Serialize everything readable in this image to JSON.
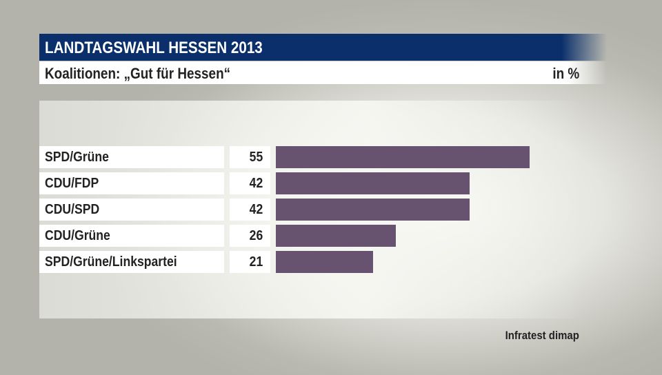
{
  "chart_data": {
    "type": "bar",
    "orientation": "horizontal",
    "title": "LANDTAGSWAHL HESSEN 2013",
    "subtitle": "Koalitionen: „Gut für Hessen“",
    "unit": "in %",
    "categories": [
      "SPD/Grüne",
      "CDU/FDP",
      "CDU/SPD",
      "CDU/Grüne",
      "SPD/Grüne/Linkspartei"
    ],
    "values": [
      55,
      42,
      42,
      26,
      21
    ],
    "value_labels": [
      "55",
      "42",
      "42",
      "26",
      "21"
    ],
    "bar_color": "#67536f",
    "header_color": "#0a2f6b",
    "xlim": [
      0,
      100
    ],
    "grid": false,
    "source": "Infratest dimap"
  }
}
